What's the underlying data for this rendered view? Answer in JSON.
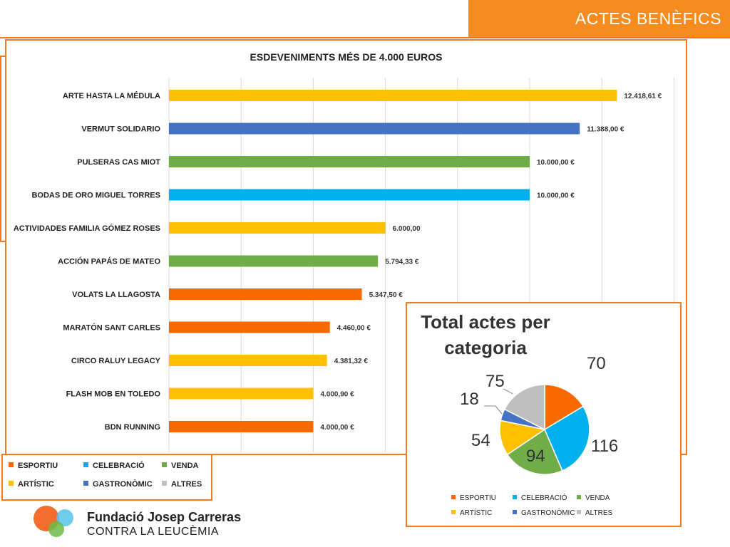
{
  "header": {
    "title": "ACTES BENÈFICS"
  },
  "colors": {
    "esportiu": "#fa6800",
    "celebracio": "#00b0ef",
    "venda": "#70ad47",
    "artistic": "#ffc000",
    "gastronomic": "#4472c4",
    "altres": "#bfbfbf",
    "frame": "#f47a20"
  },
  "legend": {
    "items": [
      {
        "label": "ESPORTIU",
        "color": "#fa6800"
      },
      {
        "label": "CELEBRACIÓ",
        "color": "#00b0ef"
      },
      {
        "label": "VENDA",
        "color": "#70ad47"
      },
      {
        "label": "ARTÍSTIC",
        "color": "#ffc000"
      },
      {
        "label": "GASTRONÒMIC",
        "color": "#4472c4"
      },
      {
        "label": "ALTRES",
        "color": "#bfbfbf"
      }
    ]
  },
  "logo": {
    "line1": "Fundació Josep Carreras",
    "line2": "CONTRA LA LEUCÈMIA"
  },
  "chart_data": [
    {
      "type": "bar",
      "orientation": "horizontal",
      "title": "ESDEVENIMENTS MÉS DE 4.000 EUROS",
      "grid": true,
      "xlim": [
        0,
        14000
      ],
      "categories": [
        "ARTE HASTA LA MÉDULA",
        "VERMUT SOLIDARIO",
        "PULSERAS CAS MIOT",
        "BODAS DE ORO MIGUEL TORRES",
        "ACTIVIDADES FAMILIA GÓMEZ ROSES",
        "ACCIÓN PAPÁS DE MATEO",
        "VOLATS LA LLAGOSTA",
        "MARATÓN SANT CARLES",
        "CIRCO RALUY LEGACY",
        "FLASH MOB EN TOLEDO",
        "BDN RUNNING"
      ],
      "values": [
        12418.61,
        11388.0,
        10000.0,
        10000.0,
        6000.0,
        5794.33,
        5347.5,
        4460.0,
        4381.32,
        4000.9,
        4000.0
      ],
      "value_labels": [
        "12.418,61 €",
        "11.388,00 €",
        "10.000,00 €",
        "10.000,00 €",
        "6.000,00",
        "5.794,33 €",
        "5.347,50 €",
        "4.460,00 €",
        "4.381,32 €",
        "4.000,90 €",
        "4.000,00 €"
      ],
      "bar_categories": [
        "ARTÍSTIC",
        "GASTRONÒMIC",
        "VENDA",
        "CELEBRACIÓ",
        "ARTÍSTIC",
        "VENDA",
        "ESPORTIU",
        "ESPORTIU",
        "ARTÍSTIC",
        "ARTÍSTIC",
        "ESPORTIU"
      ],
      "bar_colors": [
        "#ffc000",
        "#4472c4",
        "#70ad47",
        "#00b0ef",
        "#ffc000",
        "#70ad47",
        "#fa6800",
        "#fa6800",
        "#ffc000",
        "#ffc000",
        "#fa6800"
      ]
    },
    {
      "type": "pie",
      "title": "Total actes per categoria",
      "labels": [
        "ESPORTIU",
        "CELEBRACIÓ",
        "VENDA",
        "ARTÍSTIC",
        "GASTRONÒMIC",
        "ALTRES"
      ],
      "values": [
        70,
        116,
        94,
        54,
        18,
        75
      ],
      "colors": [
        "#fa6800",
        "#00b0ef",
        "#70ad47",
        "#ffc000",
        "#4472c4",
        "#bfbfbf"
      ],
      "legend_position": "bottom"
    }
  ]
}
